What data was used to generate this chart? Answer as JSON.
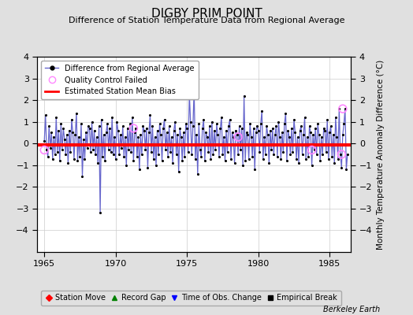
{
  "title": "DIGBY PRIM POINT",
  "subtitle": "Difference of Station Temperature Data from Regional Average",
  "ylabel": "Monthly Temperature Anomaly Difference (°C)",
  "xlabel_bottom": "Berkeley Earth",
  "xlim": [
    1964.5,
    1986.5
  ],
  "ylim": [
    -5,
    4
  ],
  "yticks": [
    -4,
    -3,
    -2,
    -1,
    0,
    1,
    2,
    3,
    4
  ],
  "xticks": [
    1965,
    1970,
    1975,
    1980,
    1985
  ],
  "bias_value": -0.05,
  "background_color": "#e0e0e0",
  "plot_bg_color": "#ffffff",
  "line_color": "#6666cc",
  "bias_color": "#ff0000",
  "marker_color": "#000000",
  "qc_color": "#ff88ff",
  "data": {
    "times": [
      1965.0,
      1965.083,
      1965.167,
      1965.25,
      1965.333,
      1965.417,
      1965.5,
      1965.583,
      1965.667,
      1965.75,
      1965.833,
      1965.917,
      1966.0,
      1966.083,
      1966.167,
      1966.25,
      1966.333,
      1966.417,
      1966.5,
      1966.583,
      1966.667,
      1966.75,
      1966.833,
      1966.917,
      1967.0,
      1967.083,
      1967.167,
      1967.25,
      1967.333,
      1967.417,
      1967.5,
      1967.583,
      1967.667,
      1967.75,
      1967.833,
      1967.917,
      1968.0,
      1968.083,
      1968.167,
      1968.25,
      1968.333,
      1968.417,
      1968.5,
      1968.583,
      1968.667,
      1968.75,
      1968.833,
      1968.917,
      1969.0,
      1969.083,
      1969.167,
      1969.25,
      1969.333,
      1969.417,
      1969.5,
      1969.583,
      1969.667,
      1969.75,
      1969.833,
      1969.917,
      1970.0,
      1970.083,
      1970.167,
      1970.25,
      1970.333,
      1970.417,
      1970.5,
      1970.583,
      1970.667,
      1970.75,
      1970.833,
      1970.917,
      1971.0,
      1971.083,
      1971.167,
      1971.25,
      1971.333,
      1971.417,
      1971.5,
      1971.583,
      1971.667,
      1971.75,
      1971.833,
      1971.917,
      1972.0,
      1972.083,
      1972.167,
      1972.25,
      1972.333,
      1972.417,
      1972.5,
      1972.583,
      1972.667,
      1972.75,
      1972.833,
      1972.917,
      1973.0,
      1973.083,
      1973.167,
      1973.25,
      1973.333,
      1973.417,
      1973.5,
      1973.583,
      1973.667,
      1973.75,
      1973.833,
      1973.917,
      1974.0,
      1974.083,
      1974.167,
      1974.25,
      1974.333,
      1974.417,
      1974.5,
      1974.583,
      1974.667,
      1974.75,
      1974.833,
      1974.917,
      1975.0,
      1975.083,
      1975.167,
      1975.25,
      1975.333,
      1975.417,
      1975.5,
      1975.583,
      1975.667,
      1975.75,
      1975.833,
      1975.917,
      1976.0,
      1976.083,
      1976.167,
      1976.25,
      1976.333,
      1976.417,
      1976.5,
      1976.583,
      1976.667,
      1976.75,
      1976.833,
      1976.917,
      1977.0,
      1977.083,
      1977.167,
      1977.25,
      1977.333,
      1977.417,
      1977.5,
      1977.583,
      1977.667,
      1977.75,
      1977.833,
      1977.917,
      1978.0,
      1978.083,
      1978.167,
      1978.25,
      1978.333,
      1978.417,
      1978.5,
      1978.583,
      1978.667,
      1978.75,
      1978.833,
      1978.917,
      1979.0,
      1979.083,
      1979.167,
      1979.25,
      1979.333,
      1979.417,
      1979.5,
      1979.583,
      1979.667,
      1979.75,
      1979.833,
      1979.917,
      1980.0,
      1980.083,
      1980.167,
      1980.25,
      1980.333,
      1980.417,
      1980.5,
      1980.583,
      1980.667,
      1980.75,
      1980.833,
      1980.917,
      1981.0,
      1981.083,
      1981.167,
      1981.25,
      1981.333,
      1981.417,
      1981.5,
      1981.583,
      1981.667,
      1981.75,
      1981.833,
      1981.917,
      1982.0,
      1982.083,
      1982.167,
      1982.25,
      1982.333,
      1982.417,
      1982.5,
      1982.583,
      1982.667,
      1982.75,
      1982.833,
      1982.917,
      1983.0,
      1983.083,
      1983.167,
      1983.25,
      1983.333,
      1983.417,
      1983.5,
      1983.583,
      1983.667,
      1983.75,
      1983.833,
      1983.917,
      1984.0,
      1984.083,
      1984.167,
      1984.25,
      1984.333,
      1984.417,
      1984.5,
      1984.583,
      1984.667,
      1984.75,
      1984.833,
      1984.917,
      1985.0,
      1985.083,
      1985.167,
      1985.25,
      1985.333,
      1985.417,
      1985.5,
      1985.583,
      1985.667,
      1985.75,
      1985.833,
      1985.917,
      1986.0,
      1986.083,
      1986.167,
      1986.25
    ],
    "values": [
      0.1,
      1.3,
      -0.3,
      -0.6,
      0.8,
      -0.2,
      0.5,
      -0.7,
      0.3,
      -0.5,
      1.2,
      -0.4,
      0.6,
      -0.8,
      0.9,
      -0.3,
      0.7,
      0.2,
      -0.5,
      0.4,
      -0.9,
      0.6,
      -0.4,
      1.1,
      0.5,
      -0.7,
      0.4,
      1.4,
      -0.8,
      0.3,
      -0.6,
      0.9,
      -1.5,
      0.2,
      -0.7,
      0.5,
      -0.2,
      0.8,
      0.7,
      -0.4,
      1.0,
      -0.3,
      0.6,
      -0.5,
      0.3,
      -0.9,
      0.8,
      -3.2,
      1.1,
      -0.6,
      0.4,
      -0.8,
      0.5,
      0.9,
      -0.3,
      0.7,
      -0.4,
      1.2,
      -0.5,
      0.3,
      -0.7,
      1.0,
      0.6,
      -0.5,
      0.4,
      -0.2,
      0.8,
      -0.6,
      0.3,
      -1.0,
      0.7,
      -0.3,
      0.9,
      -0.4,
      1.2,
      -0.8,
      0.5,
      0.7,
      -0.6,
      0.3,
      -1.2,
      0.4,
      -0.5,
      0.8,
      0.6,
      -0.3,
      0.7,
      -1.1,
      0.5,
      1.3,
      -0.4,
      0.8,
      -0.7,
      0.3,
      -1.0,
      0.6,
      -0.5,
      0.9,
      0.4,
      -0.8,
      0.7,
      1.1,
      -0.3,
      0.5,
      -0.6,
      0.8,
      -0.4,
      0.3,
      -0.9,
      0.6,
      1.0,
      -0.5,
      0.4,
      -1.3,
      0.7,
      0.3,
      -0.8,
      0.5,
      -0.6,
      0.9,
      0.7,
      -0.4,
      2.3,
      1.0,
      -0.5,
      0.8,
      2.5,
      -0.7,
      0.4,
      -1.4,
      0.9,
      -0.3,
      -0.6,
      0.7,
      1.1,
      -0.8,
      0.5,
      0.3,
      -0.4,
      0.8,
      -0.7,
      1.0,
      -0.5,
      0.6,
      -0.3,
      0.9,
      0.4,
      -0.6,
      0.7,
      1.2,
      -0.5,
      0.3,
      -0.8,
      0.6,
      -0.4,
      0.8,
      1.1,
      -0.7,
      0.5,
      0.3,
      -0.9,
      0.6,
      0.4,
      -0.5,
      0.8,
      -0.3,
      0.7,
      -1.0,
      2.2,
      -0.8,
      0.5,
      0.4,
      -0.7,
      0.9,
      0.3,
      -0.6,
      0.7,
      -1.2,
      0.5,
      0.8,
      0.6,
      -0.4,
      0.9,
      1.5,
      -0.7,
      0.3,
      -0.5,
      0.8,
      0.4,
      -0.9,
      0.6,
      -0.3,
      0.7,
      -0.5,
      0.4,
      0.8,
      -0.6,
      1.0,
      0.3,
      -0.7,
      0.5,
      -0.4,
      0.9,
      1.4,
      -0.8,
      0.6,
      0.3,
      -0.5,
      0.7,
      -0.4,
      1.1,
      0.5,
      -0.7,
      0.3,
      -0.9,
      0.6,
      0.8,
      -0.5,
      0.4,
      1.2,
      -0.7,
      0.3,
      -0.6,
      0.8,
      0.5,
      -1.0,
      0.4,
      -0.3,
      0.7,
      -0.5,
      0.9,
      0.4,
      -0.8,
      0.3,
      -0.5,
      0.7,
      0.6,
      -0.4,
      1.1,
      -0.7,
      0.5,
      0.8,
      -0.6,
      0.4,
      -0.9,
      1.2,
      0.3,
      -0.7,
      1.6,
      -0.5,
      -1.1,
      0.4,
      0.9,
      1.6,
      -1.2,
      -0.5
    ],
    "qc_failed_times": [
      1965.0,
      1971.25,
      1978.583,
      1983.75,
      1985.917,
      1985.833
    ],
    "qc_failed_values": [
      -0.3,
      0.7,
      0.3,
      -0.3,
      1.6,
      -0.5
    ]
  },
  "legend1": {
    "line_label": "Difference from Regional Average",
    "qc_label": "Quality Control Failed",
    "bias_label": "Estimated Station Mean Bias"
  },
  "legend2": {
    "station_move_label": "Station Move",
    "record_gap_label": "Record Gap",
    "obs_change_label": "Time of Obs. Change",
    "emp_break_label": "Empirical Break"
  },
  "title_fontsize": 11,
  "subtitle_fontsize": 8,
  "tick_fontsize": 8,
  "ylabel_fontsize": 7.5
}
